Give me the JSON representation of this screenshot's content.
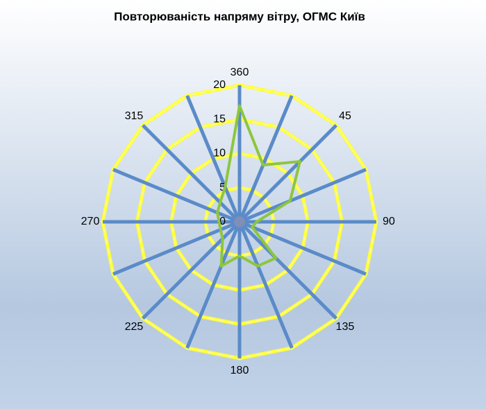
{
  "chart_data": {
    "type": "radar",
    "title": "Повторюваність напряму вітру, ОГМС Київ",
    "categories": [
      "360",
      null,
      "45",
      null,
      "90",
      null,
      "135",
      null,
      "180",
      null,
      "225",
      null,
      "270",
      null,
      "315",
      null
    ],
    "series": [
      {
        "color": "#8cc63e",
        "values": [
          17,
          9,
          12.5,
          8,
          2.5,
          2,
          7.5,
          7,
          5,
          7,
          3.5,
          3,
          3,
          3.5,
          4,
          5.5
        ]
      }
    ],
    "ylim": [
      0,
      20
    ],
    "yticks": [
      0,
      5,
      10,
      15,
      20
    ],
    "grid_color": "#ffff33",
    "spoke_color": "#5b8bc8"
  }
}
